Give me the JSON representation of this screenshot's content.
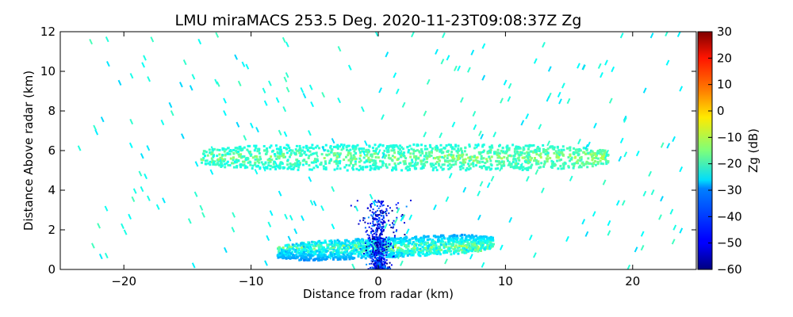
{
  "chart_data": {
    "type": "heatmap",
    "title": "LMU miraMACS 253.5 Deg. 2020-11-23T09:08:37Z  Zg",
    "xlabel": "Distance from radar (km)",
    "ylabel": "Distance Above radar  (km)",
    "xlim": [
      -25,
      25
    ],
    "ylim": [
      0,
      12
    ],
    "x_ticks": [
      -20,
      -10,
      0,
      10,
      20
    ],
    "x_tick_labels": [
      "−20",
      "−10",
      "0",
      "10",
      "20"
    ],
    "y_ticks": [
      0,
      2,
      4,
      6,
      8,
      10,
      12
    ],
    "y_tick_labels": [
      "0",
      "2",
      "4",
      "6",
      "8",
      "10",
      "12"
    ],
    "colorbar": {
      "label": "Zg (dB)",
      "colormap": "jet",
      "range": [
        -60,
        30
      ],
      "ticks": [
        -60,
        -50,
        -40,
        -30,
        -20,
        -10,
        0,
        10,
        20,
        30
      ],
      "tick_labels": [
        "−60",
        "−50",
        "−40",
        "−30",
        "−20",
        "−10",
        "0",
        "10",
        "20",
        "30"
      ]
    },
    "features": [
      {
        "name": "upper cloud layer",
        "x_range": [
          -14,
          18
        ],
        "y_range": [
          5.0,
          6.3
        ],
        "zg_range": [
          -30,
          -10
        ]
      },
      {
        "name": "low cloud layer",
        "x_range": [
          -8,
          9
        ],
        "y_range": [
          0.6,
          1.6
        ],
        "zg_range": [
          -40,
          -10
        ]
      },
      {
        "name": "near-radar echoes",
        "x_range": [
          -3,
          3
        ],
        "y_range": [
          0,
          3.5
        ],
        "zg_range": [
          -60,
          -35
        ]
      },
      {
        "name": "scattered echoes",
        "x_range": [
          -24,
          24
        ],
        "y_range": [
          0,
          12
        ],
        "zg_range": [
          -30,
          -20
        ]
      }
    ]
  }
}
